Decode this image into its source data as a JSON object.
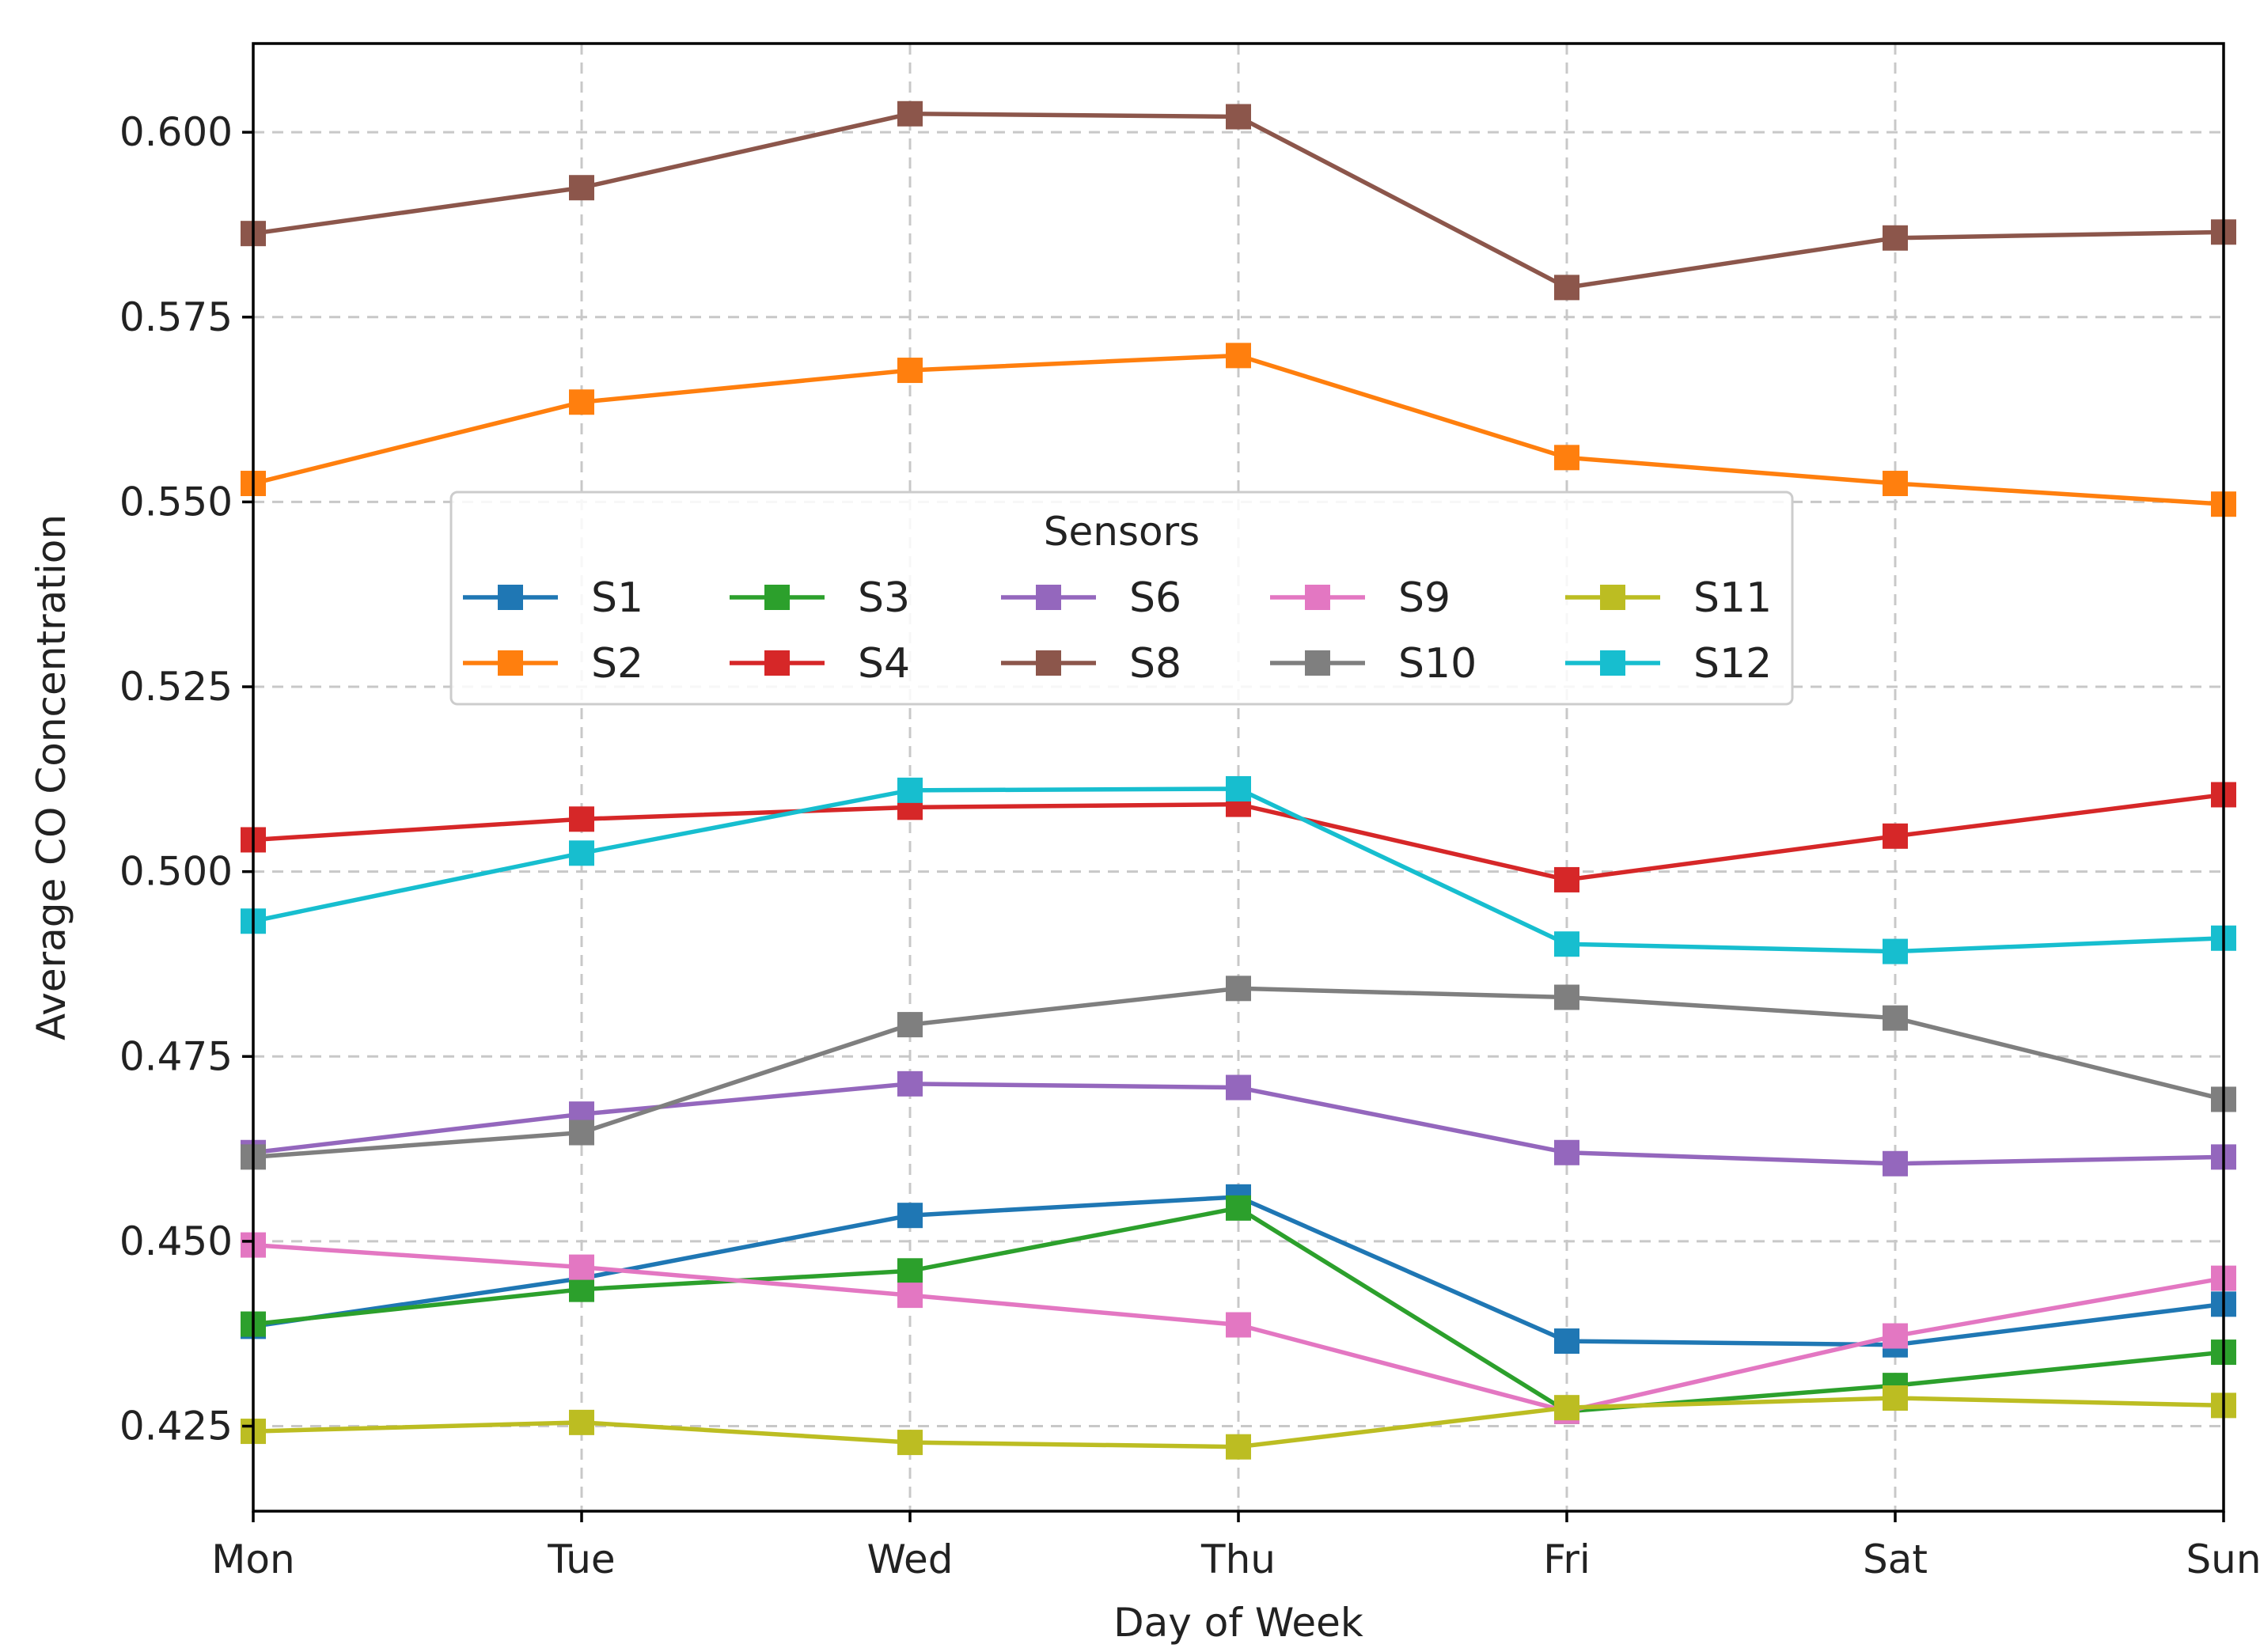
{
  "chart_data": {
    "type": "line",
    "title": "",
    "xlabel": "Day of Week",
    "ylabel": "Average CO Concentration",
    "categories": [
      "Mon",
      "Tue",
      "Wed",
      "Thu",
      "Fri",
      "Sat",
      "Sun"
    ],
    "ylim": [
      0.4135,
      0.612
    ],
    "yticks": [
      0.425,
      0.45,
      0.475,
      0.5,
      0.525,
      0.55,
      0.575,
      0.6
    ],
    "ytick_labels": [
      "0.425",
      "0.450",
      "0.475",
      "0.500",
      "0.525",
      "0.550",
      "0.575",
      "0.600"
    ],
    "grid": true,
    "legend": {
      "title": "Sensors",
      "placement": "center-left",
      "columns": 5
    },
    "series": [
      {
        "name": "S1",
        "color": "#1f77b4",
        "values": [
          0.4385,
          0.445,
          0.4535,
          0.456,
          0.4365,
          0.436,
          0.4415
        ]
      },
      {
        "name": "S2",
        "color": "#ff7f0e",
        "values": [
          0.5525,
          0.5635,
          0.5678,
          0.5698,
          0.556,
          0.5525,
          0.5497
        ]
      },
      {
        "name": "S3",
        "color": "#2ca02c",
        "values": [
          0.4388,
          0.4435,
          0.446,
          0.4545,
          0.427,
          0.4305,
          0.435
        ]
      },
      {
        "name": "S4",
        "color": "#d62728",
        "values": [
          0.5043,
          0.5071,
          0.5087,
          0.5091,
          0.4989,
          0.5048,
          0.5104
        ]
      },
      {
        "name": "S6",
        "color": "#9467bd",
        "values": [
          0.462,
          0.4672,
          0.4713,
          0.4708,
          0.462,
          0.4605,
          0.4614
        ]
      },
      {
        "name": "S8",
        "color": "#8c564b",
        "values": [
          0.5863,
          0.5925,
          0.6025,
          0.6021,
          0.579,
          0.5857,
          0.5865
        ]
      },
      {
        "name": "S9",
        "color": "#e377c2",
        "values": [
          0.4495,
          0.4465,
          0.4427,
          0.4387,
          0.427,
          0.4372,
          0.445
        ]
      },
      {
        "name": "S10",
        "color": "#7f7f7f",
        "values": [
          0.4614,
          0.4647,
          0.4793,
          0.4842,
          0.483,
          0.4802,
          0.4692
        ]
      },
      {
        "name": "S11",
        "color": "#bcbd22",
        "values": [
          0.4243,
          0.4255,
          0.4228,
          0.4222,
          0.4275,
          0.4288,
          0.4278
        ]
      },
      {
        "name": "S12",
        "color": "#17becf",
        "values": [
          0.4933,
          0.5025,
          0.511,
          0.5112,
          0.4902,
          0.4892,
          0.491
        ]
      }
    ]
  }
}
